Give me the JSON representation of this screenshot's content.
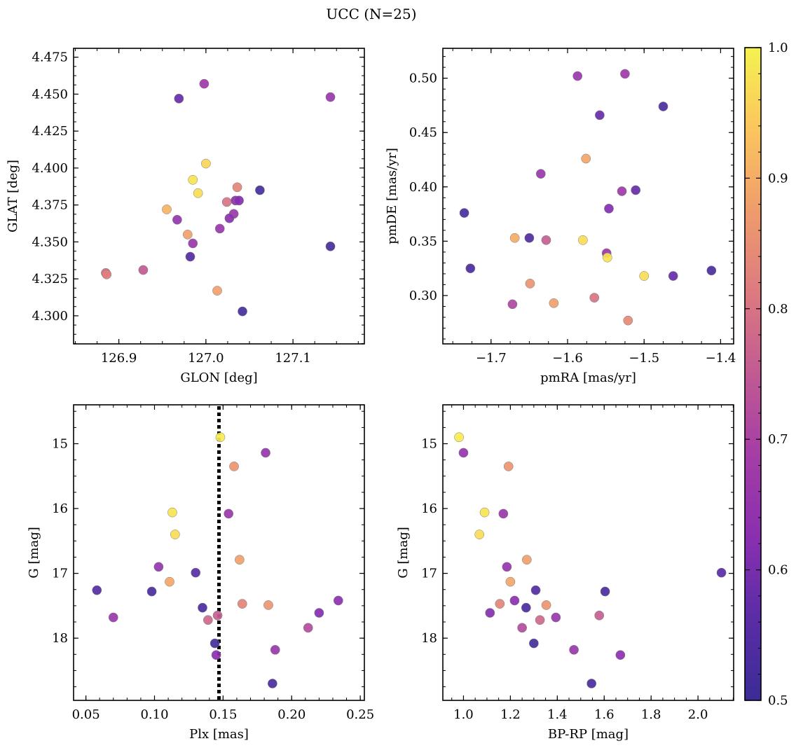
{
  "title": "UCC (N=25)",
  "colormap": {
    "name": "plasma",
    "min": 0.5,
    "max": 1.0,
    "ticks": [
      0.5,
      0.6,
      0.7,
      0.8,
      0.9,
      1.0
    ],
    "tick_labels": [
      "0.5",
      "0.6",
      "0.7",
      "0.8",
      "0.9",
      "1.0"
    ],
    "stops": [
      "#3b2c96",
      "#5a2ca6",
      "#8a2fb0",
      "#a43da6",
      "#c15a93",
      "#dd7a80",
      "#ef9c6c",
      "#fbc55e",
      "#f5f24f"
    ]
  },
  "chart_data": [
    {
      "type": "scatter",
      "id": "glon-glat",
      "xlabel": "GLON [deg]",
      "ylabel": "GLAT [deg]",
      "xlim": [
        126.848,
        127.182
      ],
      "ylim": [
        4.281,
        4.481
      ],
      "x_invert": false,
      "y_invert": false,
      "xticks": [
        126.9,
        127.0,
        127.1
      ],
      "xtick_labels": [
        "126.9",
        "127.0",
        "127.1"
      ],
      "yticks": [
        4.3,
        4.325,
        4.35,
        4.375,
        4.4,
        4.425,
        4.45,
        4.475
      ],
      "ytick_labels": [
        "4.300",
        "4.325",
        "4.350",
        "4.375",
        "4.400",
        "4.425",
        "4.450",
        "4.475"
      ],
      "vline": null,
      "points": [
        {
          "x": 126.969,
          "y": 4.447,
          "c": 0.58
        },
        {
          "x": 126.998,
          "y": 4.457,
          "c": 0.67
        },
        {
          "x": 127.143,
          "y": 4.448,
          "c": 0.66
        },
        {
          "x": 127.0,
          "y": 4.403,
          "c": 0.96
        },
        {
          "x": 126.985,
          "y": 4.392,
          "c": 0.98
        },
        {
          "x": 126.991,
          "y": 4.383,
          "c": 0.97
        },
        {
          "x": 127.036,
          "y": 4.387,
          "c": 0.83
        },
        {
          "x": 127.062,
          "y": 4.385,
          "c": 0.52
        },
        {
          "x": 126.955,
          "y": 4.372,
          "c": 0.91
        },
        {
          "x": 127.024,
          "y": 4.377,
          "c": 0.8
        },
        {
          "x": 127.034,
          "y": 4.378,
          "c": 0.63
        },
        {
          "x": 127.038,
          "y": 4.378,
          "c": 0.62
        },
        {
          "x": 127.032,
          "y": 4.369,
          "c": 0.66
        },
        {
          "x": 126.967,
          "y": 4.365,
          "c": 0.65
        },
        {
          "x": 127.027,
          "y": 4.366,
          "c": 0.63
        },
        {
          "x": 127.016,
          "y": 4.359,
          "c": 0.66
        },
        {
          "x": 126.979,
          "y": 4.355,
          "c": 0.88
        },
        {
          "x": 126.985,
          "y": 4.349,
          "c": 0.66
        },
        {
          "x": 126.982,
          "y": 4.34,
          "c": 0.55
        },
        {
          "x": 127.143,
          "y": 4.347,
          "c": 0.52
        },
        {
          "x": 126.928,
          "y": 4.331,
          "c": 0.75
        },
        {
          "x": 126.885,
          "y": 4.329,
          "c": 0.79
        },
        {
          "x": 126.886,
          "y": 4.328,
          "c": 0.82
        },
        {
          "x": 127.013,
          "y": 4.317,
          "c": 0.88
        },
        {
          "x": 127.042,
          "y": 4.303,
          "c": 0.52
        }
      ]
    },
    {
      "type": "scatter",
      "id": "pmra-pmde",
      "xlabel": "pmRA [mas/yr]",
      "ylabel": "pmDE [mas/yr]",
      "xlim": [
        -1.763,
        -1.383
      ],
      "ylim": [
        0.2555,
        0.5275
      ],
      "x_invert": false,
      "y_invert": false,
      "xticks": [
        -1.7,
        -1.6,
        -1.5,
        -1.4
      ],
      "xtick_labels": [
        "−1.7",
        "−1.6",
        "−1.5",
        "−1.4"
      ],
      "yticks": [
        0.3,
        0.35,
        0.4,
        0.45,
        0.5
      ],
      "ytick_labels": [
        "0.30",
        "0.35",
        "0.40",
        "0.45",
        "0.50"
      ],
      "vline": null,
      "points": [
        {
          "x": -1.587,
          "y": 0.502,
          "c": 0.66
        },
        {
          "x": -1.525,
          "y": 0.504,
          "c": 0.67
        },
        {
          "x": -1.558,
          "y": 0.466,
          "c": 0.58
        },
        {
          "x": -1.475,
          "y": 0.474,
          "c": 0.53
        },
        {
          "x": -1.576,
          "y": 0.426,
          "c": 0.89
        },
        {
          "x": -1.635,
          "y": 0.412,
          "c": 0.66
        },
        {
          "x": -1.529,
          "y": 0.396,
          "c": 0.67
        },
        {
          "x": -1.511,
          "y": 0.397,
          "c": 0.58
        },
        {
          "x": -1.546,
          "y": 0.38,
          "c": 0.62
        },
        {
          "x": -1.735,
          "y": 0.376,
          "c": 0.53
        },
        {
          "x": -1.65,
          "y": 0.353,
          "c": 0.54
        },
        {
          "x": -1.669,
          "y": 0.353,
          "c": 0.9
        },
        {
          "x": -1.628,
          "y": 0.351,
          "c": 0.76
        },
        {
          "x": -1.58,
          "y": 0.351,
          "c": 0.97
        },
        {
          "x": -1.549,
          "y": 0.339,
          "c": 0.66
        },
        {
          "x": -1.548,
          "y": 0.335,
          "c": 0.98
        },
        {
          "x": -1.727,
          "y": 0.325,
          "c": 0.53
        },
        {
          "x": -1.5,
          "y": 0.318,
          "c": 0.97
        },
        {
          "x": -1.462,
          "y": 0.318,
          "c": 0.58
        },
        {
          "x": -1.412,
          "y": 0.323,
          "c": 0.53
        },
        {
          "x": -1.649,
          "y": 0.311,
          "c": 0.86
        },
        {
          "x": -1.565,
          "y": 0.298,
          "c": 0.8
        },
        {
          "x": -1.672,
          "y": 0.292,
          "c": 0.71
        },
        {
          "x": -1.618,
          "y": 0.293,
          "c": 0.88
        },
        {
          "x": -1.521,
          "y": 0.277,
          "c": 0.84
        }
      ]
    },
    {
      "type": "scatter",
      "id": "plx-g",
      "xlabel": "Plx [mas]",
      "ylabel": "G [mag]",
      "xlim": [
        0.041,
        0.253
      ],
      "ylim": [
        14.4,
        18.96
      ],
      "x_invert": false,
      "y_invert": true,
      "xticks": [
        0.05,
        0.1,
        0.15,
        0.2,
        0.25
      ],
      "xtick_labels": [
        "0.05",
        "0.10",
        "0.15",
        "0.20",
        "0.25"
      ],
      "yticks": [
        15,
        16,
        17,
        18
      ],
      "ytick_labels": [
        "15",
        "16",
        "17",
        "18"
      ],
      "vline": {
        "x": 0.147,
        "style": "dotted"
      },
      "points": [
        {
          "x": 0.148,
          "y": 14.9,
          "c": 0.99
        },
        {
          "x": 0.181,
          "y": 15.14,
          "c": 0.65
        },
        {
          "x": 0.158,
          "y": 15.35,
          "c": 0.86
        },
        {
          "x": 0.113,
          "y": 16.06,
          "c": 0.98
        },
        {
          "x": 0.154,
          "y": 16.08,
          "c": 0.66
        },
        {
          "x": 0.115,
          "y": 16.4,
          "c": 0.97
        },
        {
          "x": 0.162,
          "y": 16.79,
          "c": 0.88
        },
        {
          "x": 0.103,
          "y": 16.9,
          "c": 0.65
        },
        {
          "x": 0.13,
          "y": 16.99,
          "c": 0.56
        },
        {
          "x": 0.111,
          "y": 17.13,
          "c": 0.89
        },
        {
          "x": 0.058,
          "y": 17.26,
          "c": 0.55
        },
        {
          "x": 0.098,
          "y": 17.28,
          "c": 0.53
        },
        {
          "x": 0.234,
          "y": 17.42,
          "c": 0.63
        },
        {
          "x": 0.164,
          "y": 17.47,
          "c": 0.83
        },
        {
          "x": 0.183,
          "y": 17.49,
          "c": 0.86
        },
        {
          "x": 0.135,
          "y": 17.53,
          "c": 0.53
        },
        {
          "x": 0.22,
          "y": 17.61,
          "c": 0.62
        },
        {
          "x": 0.146,
          "y": 17.65,
          "c": 0.76
        },
        {
          "x": 0.07,
          "y": 17.68,
          "c": 0.66
        },
        {
          "x": 0.139,
          "y": 17.72,
          "c": 0.78
        },
        {
          "x": 0.212,
          "y": 17.84,
          "c": 0.72
        },
        {
          "x": 0.144,
          "y": 18.08,
          "c": 0.52
        },
        {
          "x": 0.188,
          "y": 18.18,
          "c": 0.66
        },
        {
          "x": 0.145,
          "y": 18.26,
          "c": 0.63
        },
        {
          "x": 0.186,
          "y": 18.7,
          "c": 0.53
        }
      ]
    },
    {
      "type": "scatter",
      "id": "bprp-g",
      "xlabel": "BP-RP [mag]",
      "ylabel": "G [mag]",
      "xlim": [
        0.912,
        2.152
      ],
      "ylim": [
        14.4,
        18.96
      ],
      "x_invert": false,
      "y_invert": true,
      "xticks": [
        1.0,
        1.2,
        1.4,
        1.6,
        1.8,
        2.0
      ],
      "xtick_labels": [
        "1.0",
        "1.2",
        "1.4",
        "1.6",
        "1.8",
        "2.0"
      ],
      "yticks": [
        15,
        16,
        17,
        18
      ],
      "ytick_labels": [
        "15",
        "16",
        "17",
        "18"
      ],
      "vline": null,
      "points": [
        {
          "x": 0.981,
          "y": 14.9,
          "c": 0.99
        },
        {
          "x": 1.0,
          "y": 15.14,
          "c": 0.65
        },
        {
          "x": 1.192,
          "y": 15.35,
          "c": 0.86
        },
        {
          "x": 1.09,
          "y": 16.06,
          "c": 0.98
        },
        {
          "x": 1.17,
          "y": 16.08,
          "c": 0.66
        },
        {
          "x": 1.068,
          "y": 16.4,
          "c": 0.97
        },
        {
          "x": 1.27,
          "y": 16.79,
          "c": 0.88
        },
        {
          "x": 1.185,
          "y": 16.9,
          "c": 0.65
        },
        {
          "x": 2.1,
          "y": 16.99,
          "c": 0.56
        },
        {
          "x": 1.2,
          "y": 17.13,
          "c": 0.89
        },
        {
          "x": 1.308,
          "y": 17.26,
          "c": 0.55
        },
        {
          "x": 1.604,
          "y": 17.28,
          "c": 0.53
        },
        {
          "x": 1.218,
          "y": 17.42,
          "c": 0.63
        },
        {
          "x": 1.155,
          "y": 17.47,
          "c": 0.83
        },
        {
          "x": 1.353,
          "y": 17.49,
          "c": 0.86
        },
        {
          "x": 1.267,
          "y": 17.53,
          "c": 0.53
        },
        {
          "x": 1.113,
          "y": 17.61,
          "c": 0.62
        },
        {
          "x": 1.579,
          "y": 17.65,
          "c": 0.76
        },
        {
          "x": 1.394,
          "y": 17.68,
          "c": 0.66
        },
        {
          "x": 1.326,
          "y": 17.72,
          "c": 0.78
        },
        {
          "x": 1.25,
          "y": 17.84,
          "c": 0.72
        },
        {
          "x": 1.3,
          "y": 18.08,
          "c": 0.52
        },
        {
          "x": 1.471,
          "y": 18.18,
          "c": 0.66
        },
        {
          "x": 1.669,
          "y": 18.26,
          "c": 0.63
        },
        {
          "x": 1.546,
          "y": 18.7,
          "c": 0.53
        }
      ]
    }
  ]
}
